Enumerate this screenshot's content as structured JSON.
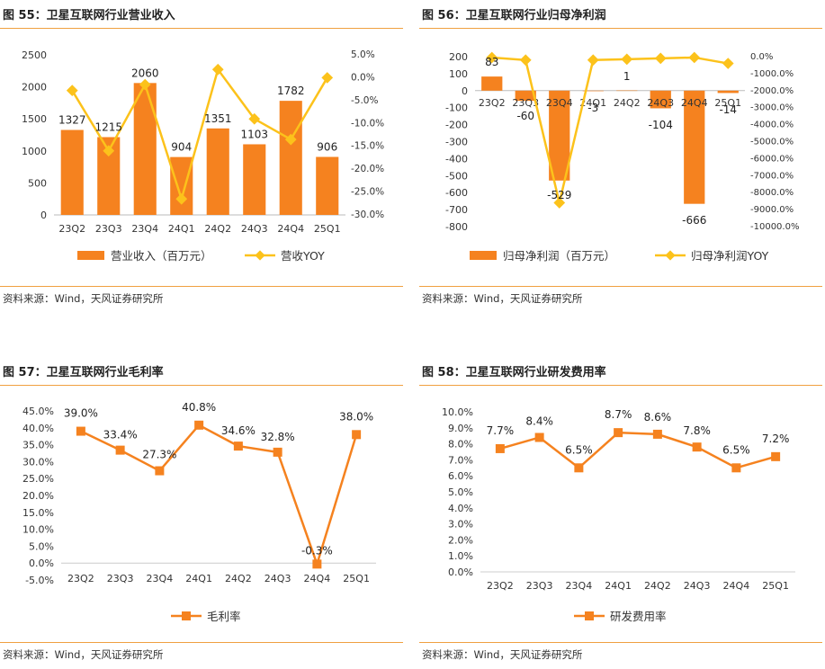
{
  "colors": {
    "bar": "#F5821F",
    "line": "#FCC21B",
    "line2": "#F5821F",
    "rule": "#F0A040"
  },
  "panels": [
    {
      "title": "图 55：卫星互联网行业营业收入",
      "source": "资料来源：Wind，天风证券研究所"
    },
    {
      "title": "图 56：卫星互联网行业归母净利润",
      "source": "资料来源：Wind，天风证券研究所"
    },
    {
      "title": "图 57：卫星互联网行业毛利率",
      "source": "资料来源：Wind，天风证券研究所"
    },
    {
      "title": "图 58：卫星互联网行业研发费用率",
      "source": "资料来源：Wind，天风证券研究所"
    }
  ],
  "chart_data": [
    {
      "type": "bar+line",
      "categories": [
        "23Q2",
        "23Q3",
        "23Q4",
        "24Q1",
        "24Q2",
        "24Q3",
        "24Q4",
        "25Q1"
      ],
      "series": [
        {
          "name": "营业收入（百万元）",
          "kind": "bar",
          "axis": "left",
          "values": [
            1327,
            1215,
            2060,
            904,
            1351,
            1103,
            1782,
            906
          ],
          "labels": [
            "1327",
            "1215",
            "2060",
            "904",
            "1351",
            "1103",
            "1782",
            "906"
          ]
        },
        {
          "name": "营收YOY",
          "kind": "line",
          "axis": "right",
          "values": [
            -2.8,
            -16.0,
            -1.5,
            -26.5,
            1.8,
            -9.0,
            -13.5,
            0.0
          ]
        }
      ],
      "ylim_left": [
        0,
        2500
      ],
      "yticks_left": [
        "0",
        "500",
        "1000",
        "1500",
        "2000",
        "2500"
      ],
      "ylim_right": [
        -30,
        5
      ],
      "yticks_right": [
        "-30.0%",
        "-25.0%",
        "-20.0%",
        "-15.0%",
        "-10.0%",
        "-5.0%",
        "0.0%",
        "5.0%"
      ],
      "legend": "bottom"
    },
    {
      "type": "bar+line",
      "categories": [
        "23Q2",
        "23Q3",
        "23Q4",
        "24Q1",
        "24Q2",
        "24Q3",
        "24Q4",
        "25Q1"
      ],
      "series": [
        {
          "name": "归母净利润（百万元）",
          "kind": "bar",
          "axis": "left",
          "values": [
            83,
            -60,
            -529,
            -3,
            1,
            -104,
            -666,
            -14
          ],
          "labels": [
            "83",
            "-60",
            "-529",
            "-3",
            "1",
            "-104",
            "-666",
            "-14"
          ]
        },
        {
          "name": "归母净利润YOY",
          "kind": "line",
          "axis": "right",
          "values": [
            -50,
            -200,
            -8600,
            -200,
            -150,
            -100,
            -50,
            -400
          ]
        }
      ],
      "ylim_left": [
        -800,
        200
      ],
      "yticks_left": [
        "-800",
        "-700",
        "-600",
        "-500",
        "-400",
        "-300",
        "-200",
        "-100",
        "0",
        "100",
        "200"
      ],
      "ylim_right": [
        -10000,
        0
      ],
      "yticks_right": [
        "-10000.0%",
        "-9000.0%",
        "-8000.0%",
        "-7000.0%",
        "-6000.0%",
        "-5000.0%",
        "-4000.0%",
        "-3000.0%",
        "-2000.0%",
        "-1000.0%",
        "0.0%"
      ],
      "legend": "bottom"
    },
    {
      "type": "line",
      "categories": [
        "23Q2",
        "23Q3",
        "23Q4",
        "24Q1",
        "24Q2",
        "24Q3",
        "24Q4",
        "25Q1"
      ],
      "series": [
        {
          "name": "毛利率",
          "values": [
            39.0,
            33.4,
            27.3,
            40.8,
            34.6,
            32.8,
            -0.3,
            38.0
          ],
          "labels": [
            "39.0%",
            "33.4%",
            "27.3%",
            "40.8%",
            "34.6%",
            "32.8%",
            "-0.3%",
            "38.0%"
          ]
        }
      ],
      "ylim": [
        -5,
        45
      ],
      "yticks": [
        "-5.0%",
        "0.0%",
        "5.0%",
        "10.0%",
        "15.0%",
        "20.0%",
        "25.0%",
        "30.0%",
        "35.0%",
        "40.0%",
        "45.0%"
      ],
      "legend": "bottom"
    },
    {
      "type": "line",
      "categories": [
        "23Q2",
        "23Q3",
        "23Q4",
        "24Q1",
        "24Q2",
        "24Q3",
        "24Q4",
        "25Q1"
      ],
      "series": [
        {
          "name": "研发费用率",
          "values": [
            7.7,
            8.4,
            6.5,
            8.7,
            8.6,
            7.8,
            6.5,
            7.2
          ],
          "labels": [
            "7.7%",
            "8.4%",
            "6.5%",
            "8.7%",
            "8.6%",
            "7.8%",
            "6.5%",
            "7.2%"
          ]
        }
      ],
      "ylim": [
        0,
        10
      ],
      "yticks": [
        "0.0%",
        "1.0%",
        "2.0%",
        "3.0%",
        "4.0%",
        "5.0%",
        "6.0%",
        "7.0%",
        "8.0%",
        "9.0%",
        "10.0%"
      ],
      "legend": "bottom"
    }
  ]
}
